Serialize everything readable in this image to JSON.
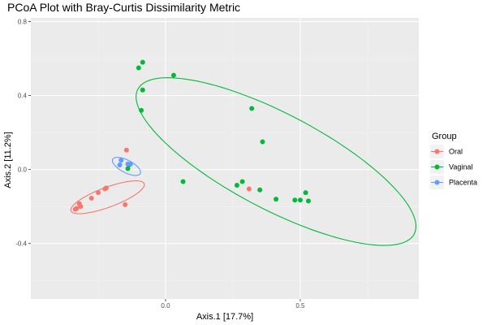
{
  "chart_data": {
    "type": "scatter",
    "title": "PCoA Plot with Bray-Curtis Dissimilarity Metric",
    "xlabel": "Axis.1   [17.7%]",
    "ylabel": "Axis.2   [11.2%]",
    "xlim": [
      -0.5,
      0.94
    ],
    "ylim": [
      -0.7,
      0.82
    ],
    "x_ticks": [
      0.0,
      0.5
    ],
    "x_tick_labels": [
      "0.0",
      "0.5"
    ],
    "y_ticks": [
      -0.4,
      0.0,
      0.4,
      0.8
    ],
    "y_tick_labels": [
      "-0.4",
      "0.0",
      "0.4",
      "0.8"
    ],
    "grid": true,
    "legend": {
      "title": "Group",
      "position": "right"
    },
    "series": [
      {
        "name": "Oral",
        "color": "#F8766D",
        "points": [
          [
            -0.335,
            -0.215
          ],
          [
            -0.33,
            -0.21
          ],
          [
            -0.32,
            -0.185
          ],
          [
            -0.315,
            -0.2
          ],
          [
            -0.275,
            -0.155
          ],
          [
            -0.25,
            -0.125
          ],
          [
            -0.225,
            -0.105
          ],
          [
            -0.22,
            -0.1
          ],
          [
            -0.15,
            -0.19
          ],
          [
            -0.145,
            0.105
          ],
          [
            0.31,
            -0.105
          ]
        ],
        "ellipse": {
          "cx": -0.215,
          "cy": -0.15,
          "rx": 0.155,
          "ry": 0.05,
          "angle_deg": 30
        }
      },
      {
        "name": "Vaginal",
        "color": "#00BA38",
        "points": [
          [
            -0.085,
            0.58
          ],
          [
            -0.1,
            0.55
          ],
          [
            -0.085,
            0.43
          ],
          [
            -0.09,
            0.32
          ],
          [
            0.03,
            0.51
          ],
          [
            0.32,
            0.33
          ],
          [
            0.36,
            0.15
          ],
          [
            0.065,
            -0.065
          ],
          [
            0.265,
            -0.085
          ],
          [
            0.285,
            -0.065
          ],
          [
            0.35,
            -0.11
          ],
          [
            0.41,
            -0.16
          ],
          [
            0.48,
            -0.165
          ],
          [
            0.5,
            -0.165
          ],
          [
            0.52,
            -0.125
          ],
          [
            0.53,
            -0.17
          ],
          [
            -0.135,
            0.025
          ],
          [
            -0.14,
            0.005
          ]
        ],
        "ellipse": {
          "cx": 0.41,
          "cy": 0.043,
          "rx": 0.65,
          "ry": 0.23,
          "angle_deg": -40
        }
      },
      {
        "name": "Placenta",
        "color": "#619CFF",
        "points": [
          [
            -0.165,
            0.05
          ],
          [
            -0.14,
            0.03
          ],
          [
            -0.13,
            0.03
          ],
          [
            -0.17,
            0.025
          ]
        ],
        "ellipse": {
          "cx": -0.145,
          "cy": 0.017,
          "rx": 0.065,
          "ry": 0.03,
          "angle_deg": -42
        }
      }
    ]
  }
}
